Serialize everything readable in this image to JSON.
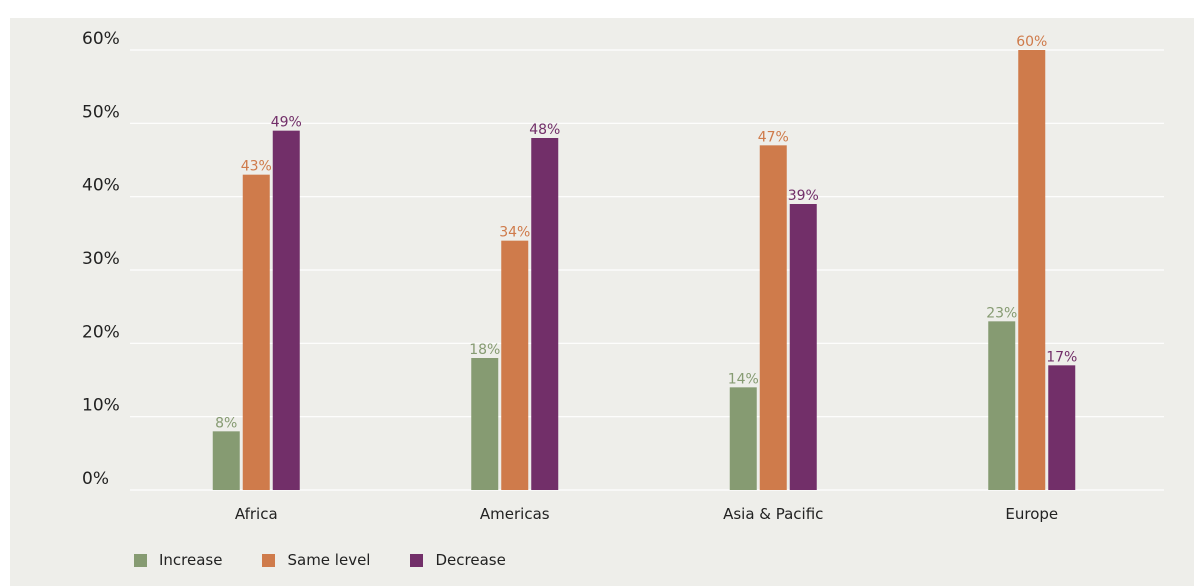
{
  "chart_data": {
    "type": "bar",
    "categories": [
      "Africa",
      "Americas",
      "Asia & Pacific",
      "Europe"
    ],
    "series": [
      {
        "name": "Increase",
        "values": [
          8,
          18,
          14,
          23
        ],
        "color": "#869b72"
      },
      {
        "name": "Same level",
        "values": [
          43,
          34,
          47,
          60
        ],
        "color": "#cf7b4b"
      },
      {
        "name": "Decrease",
        "values": [
          49,
          48,
          39,
          17
        ],
        "color": "#722f69"
      }
    ],
    "ylim": [
      0,
      60
    ],
    "yticks": [
      0,
      10,
      20,
      30,
      40,
      50,
      60
    ],
    "tick_suffix": "%",
    "value_suffix": "%",
    "grid": true,
    "legend_position": "bottom-left"
  }
}
